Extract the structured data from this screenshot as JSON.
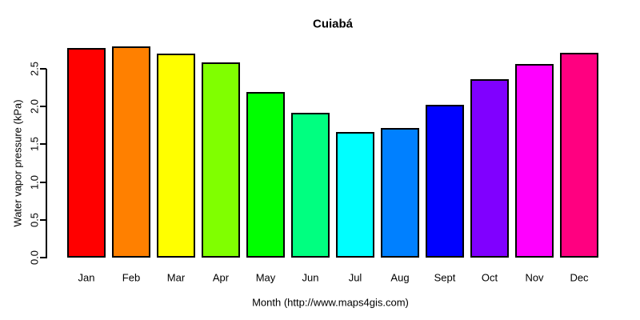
{
  "chart_data": {
    "type": "bar",
    "title": "Cuiabá",
    "xlabel": "Month (http://www.maps4gis.com)",
    "ylabel": "Water vapor pressure (kPa)",
    "categories": [
      "Jan",
      "Feb",
      "Mar",
      "Apr",
      "May",
      "Jun",
      "Jul",
      "Aug",
      "Sept",
      "Oct",
      "Nov",
      "Dec"
    ],
    "values": [
      2.78,
      2.8,
      2.7,
      2.58,
      2.19,
      1.92,
      1.66,
      1.72,
      2.02,
      2.36,
      2.56,
      2.71
    ],
    "colors": [
      "#FF0000",
      "#FF8000",
      "#FFFF00",
      "#80FF00",
      "#00FF00",
      "#00FF80",
      "#00FFFF",
      "#0080FF",
      "#0000FF",
      "#8000FF",
      "#FF00FF",
      "#FF0080"
    ],
    "bar_border_color": "#000000",
    "background_color": "#FFFFFF",
    "text_color": "#000000",
    "ylim": [
      0,
      2.5
    ],
    "yticks": [
      "0.0",
      "0.5",
      "1.0",
      "1.5",
      "2.0",
      "2.5"
    ],
    "grid": false,
    "legend_position": "none"
  }
}
